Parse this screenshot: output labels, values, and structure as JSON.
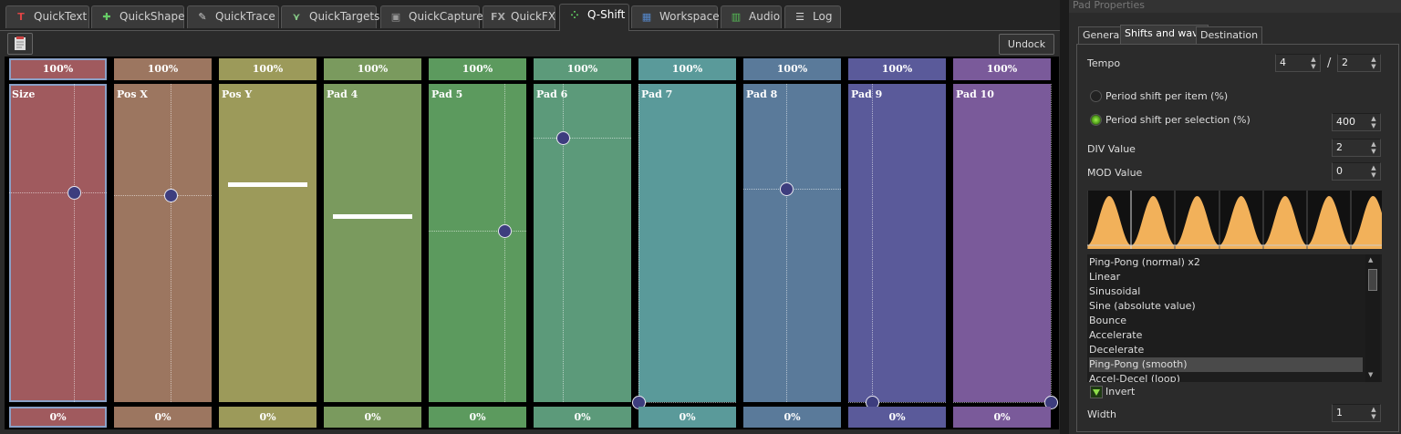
{
  "tabs": [
    {
      "label": "QuickText",
      "icon": "quicktext-icon",
      "glyph": "T",
      "color": "#d44"
    },
    {
      "label": "QuickShape",
      "icon": "quickshape-icon",
      "glyph": "✚",
      "color": "#6c6"
    },
    {
      "label": "QuickTrace",
      "icon": "quicktrace-icon",
      "glyph": "✎",
      "color": "#ccc"
    },
    {
      "label": "QuickTargets",
      "icon": "quicktargets-icon",
      "glyph": "⋎",
      "color": "#8c8"
    },
    {
      "label": "QuickCapture",
      "icon": "quickcapture-icon",
      "glyph": "▣",
      "color": "#999"
    },
    {
      "label": "QuickFX",
      "icon": "quickfx-icon",
      "glyph": "FX",
      "color": "#aaa"
    },
    {
      "label": "Q-Shift",
      "icon": "qshift-icon",
      "glyph": "⁘",
      "color": "#6d6",
      "active": true
    },
    {
      "label": "Workspace",
      "icon": "workspace-icon",
      "glyph": "▦",
      "color": "#58c"
    },
    {
      "label": "Audio",
      "icon": "audio-icon",
      "glyph": "▥",
      "color": "#5b5"
    },
    {
      "label": "Log",
      "icon": "log-icon",
      "glyph": "☰",
      "color": "#ddd"
    }
  ],
  "toolbar": {
    "undock_label": "Undock",
    "clipboard_icon": "clipboard-icon"
  },
  "pads": [
    {
      "name": "Size",
      "top": "100%",
      "bottom": "0%",
      "color": "#a05a5e",
      "topColor": "#a05a5e",
      "value": 0.66,
      "marker": "knob",
      "kx": 0.66,
      "selected": true
    },
    {
      "name": "Pos X",
      "top": "100%",
      "bottom": "0%",
      "color": "#9c7660",
      "topColor": "#9c7660",
      "value": 0.65,
      "marker": "knob",
      "kx": 0.58
    },
    {
      "name": "Pos Y",
      "top": "100%",
      "bottom": "0%",
      "color": "#9c9a5a",
      "topColor": "#9c9a5a",
      "value": 0.69,
      "marker": "bar"
    },
    {
      "name": "Pad 4",
      "top": "100%",
      "bottom": "0%",
      "color": "#7a9a5e",
      "topColor": "#7a9a5e",
      "value": 0.59,
      "marker": "bar"
    },
    {
      "name": "Pad 5",
      "top": "100%",
      "bottom": "0%",
      "color": "#5c9a5e",
      "topColor": "#5c9a5e",
      "value": 0.54,
      "marker": "knob",
      "kx": 0.78
    },
    {
      "name": "Pad 6",
      "top": "100%",
      "bottom": "0%",
      "color": "#5c9a7a",
      "topColor": "#5c9a7a",
      "value": 0.83,
      "marker": "knob",
      "kx": 0.3
    },
    {
      "name": "Pad 7",
      "top": "100%",
      "bottom": "0%",
      "color": "#5a9a9a",
      "topColor": "#5a9a9a",
      "value": 0.0,
      "marker": "knob",
      "kx": 0.0
    },
    {
      "name": "Pad 8",
      "top": "100%",
      "bottom": "0%",
      "color": "#5a7a9a",
      "topColor": "#5a7a9a",
      "value": 0.67,
      "marker": "knob",
      "kx": 0.44
    },
    {
      "name": "Pad 9",
      "top": "100%",
      "bottom": "0%",
      "color": "#5a5a9a",
      "topColor": "#5a5a9a",
      "value": 0.0,
      "marker": "knob",
      "kx": 0.24
    },
    {
      "name": "Pad 10",
      "top": "100%",
      "bottom": "0%",
      "color": "#7a5a9a",
      "topColor": "#7a5a9a",
      "value": 0.0,
      "marker": "knob",
      "kx": 1.0
    }
  ],
  "panel": {
    "title": "Pad Properties",
    "tabs": [
      "General",
      "Shifts and wave",
      "Destination"
    ],
    "tempo_label": "Tempo",
    "tempo_a": "4",
    "tempo_sep": "/",
    "tempo_b": "2",
    "radio1": "Period shift per item (%)",
    "radio2": "Period shift per selection (%)",
    "radio2_value": "400",
    "div_label": "DIV Value",
    "div_value": "2",
    "mod_label": "MOD Value",
    "mod_value": "0",
    "wave_color": "#f2b15a",
    "wave_items": [
      "Ping-Pong (normal) x2",
      "Linear",
      "Sinusoidal",
      "Sine (absolute value)",
      "Bounce",
      "Accelerate",
      "Decelerate",
      "Ping-Pong (smooth)",
      "Accel-Decel (loop)"
    ],
    "selected_wave": "Ping-Pong (smooth)",
    "invert_label": "Invert",
    "width_label": "Width",
    "width_value": "1"
  }
}
